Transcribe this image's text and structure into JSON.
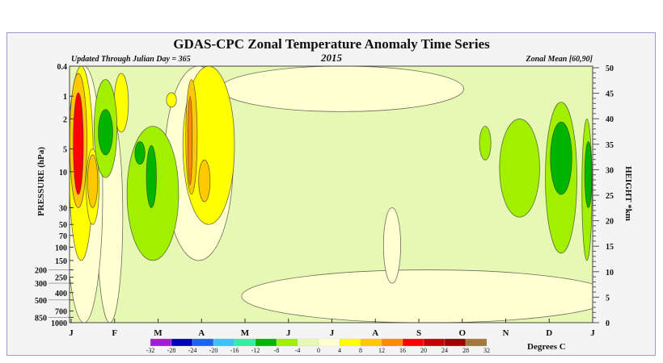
{
  "chart_data": {
    "type": "heatmap",
    "title": "GDAS-CPC Zonal Temperature Anomaly Time Series",
    "subtitle_left": "Updated Through Julian Day = 365",
    "subtitle_center": "2015",
    "subtitle_right": "Zonal Mean [60,90]",
    "xlabel": "",
    "ylabel": "PRESSURE (hPa)",
    "y2label": "HEIGHT *km",
    "x_ticks": [
      "J",
      "F",
      "M",
      "A",
      "M",
      "J",
      "J",
      "A",
      "S",
      "O",
      "N",
      "D",
      "J"
    ],
    "x_range_days": [
      1,
      365
    ],
    "y_ticks": [
      "0.4",
      "1",
      "2",
      "5",
      "10",
      "30",
      "50",
      "70",
      "100",
      "150",
      "200",
      "250",
      "300",
      "400",
      "500",
      "700",
      "850",
      "1000"
    ],
    "y_range": [
      0.4,
      1000
    ],
    "y_scale": "log",
    "y2_ticks": [
      "0",
      "5",
      "10",
      "15",
      "20",
      "25",
      "30",
      "35",
      "40",
      "45",
      "50"
    ],
    "y2_range": [
      0,
      50
    ],
    "colorbar": {
      "label": "Degrees C",
      "levels": [
        "-32",
        "-28",
        "-24",
        "-20",
        "-16",
        "-12",
        "-8",
        "-4",
        "0",
        "4",
        "8",
        "12",
        "16",
        "20",
        "24",
        "28",
        "32"
      ],
      "colors": [
        "#a01ed2",
        "#0000c0",
        "#1e64f0",
        "#3cc3f5",
        "#32f0a0",
        "#00b400",
        "#a0f000",
        "#e6f8b4",
        "#ffffd2",
        "#ffff00",
        "#ffc800",
        "#ff8c00",
        "#ff0000",
        "#c80000",
        "#a00000",
        "#a07a3c"
      ]
    },
    "anomaly_features": [
      {
        "day": 190,
        "p_top": 0.4,
        "p_bottom": 1.6,
        "value": 2,
        "width_days": 170
      },
      {
        "day": 250,
        "p_top": 200,
        "p_bottom": 1000,
        "value": 2,
        "width_days": 260
      },
      {
        "day": 28,
        "p_top": 1.5,
        "p_bottom": 1000,
        "value": 2,
        "width_days": 18
      },
      {
        "day": 10,
        "p_top": 0.4,
        "p_bottom": 1000,
        "value": 2,
        "width_days": 26
      },
      {
        "day": 90,
        "p_top": 0.4,
        "p_bottom": 150,
        "value": 2,
        "width_days": 48
      },
      {
        "day": 225,
        "p_top": 30,
        "p_bottom": 300,
        "value": 2,
        "width_days": 12
      },
      {
        "day": 8,
        "p_top": 0.4,
        "p_bottom": 150,
        "value": 6,
        "width_days": 17
      },
      {
        "day": 16,
        "p_top": 5,
        "p_bottom": 50,
        "value": 6,
        "width_days": 9
      },
      {
        "day": 36,
        "p_top": 0.5,
        "p_bottom": 3,
        "value": 6,
        "width_days": 10
      },
      {
        "day": 71,
        "p_top": 0.9,
        "p_bottom": 1.4,
        "value": 6,
        "width_days": 7
      },
      {
        "day": 97,
        "p_top": 0.4,
        "p_bottom": 50,
        "value": 6,
        "width_days": 36
      },
      {
        "day": 6,
        "p_top": 0.5,
        "p_bottom": 30,
        "value": 10,
        "width_days": 12
      },
      {
        "day": 16,
        "p_top": 6,
        "p_bottom": 30,
        "value": 10,
        "width_days": 7
      },
      {
        "day": 85,
        "p_top": 0.6,
        "p_bottom": 20,
        "value": 10,
        "width_days": 8
      },
      {
        "day": 94,
        "p_top": 7,
        "p_bottom": 25,
        "value": 10,
        "width_days": 8
      },
      {
        "day": 6,
        "p_top": 0.9,
        "p_bottom": 20,
        "value": 18,
        "width_days": 7
      },
      {
        "day": 84,
        "p_top": 1,
        "p_bottom": 15,
        "value": 14,
        "width_days": 3
      },
      {
        "day": 25,
        "p_top": 0.6,
        "p_bottom": 12,
        "value": -6,
        "width_days": 16
      },
      {
        "day": 25,
        "p_top": 1.5,
        "p_bottom": 6,
        "value": -10,
        "width_days": 10
      },
      {
        "day": 58,
        "p_top": 2.5,
        "p_bottom": 150,
        "value": -6,
        "width_days": 36
      },
      {
        "day": 49,
        "p_top": 4,
        "p_bottom": 8,
        "value": -10,
        "width_days": 7
      },
      {
        "day": 57,
        "p_top": 4.5,
        "p_bottom": 30,
        "value": -10,
        "width_days": 7
      },
      {
        "day": 290,
        "p_top": 2.5,
        "p_bottom": 7,
        "value": -6,
        "width_days": 8
      },
      {
        "day": 314,
        "p_top": 2,
        "p_bottom": 40,
        "value": -6,
        "width_days": 28
      },
      {
        "day": 343,
        "p_top": 1.2,
        "p_bottom": 120,
        "value": -6,
        "width_days": 22
      },
      {
        "day": 343,
        "p_top": 2.2,
        "p_bottom": 20,
        "value": -10,
        "width_days": 15
      },
      {
        "day": 361,
        "p_top": 2,
        "p_bottom": 150,
        "value": -6,
        "width_days": 7
      },
      {
        "day": 362,
        "p_top": 4,
        "p_bottom": 30,
        "value": -10,
        "width_days": 5
      }
    ]
  }
}
